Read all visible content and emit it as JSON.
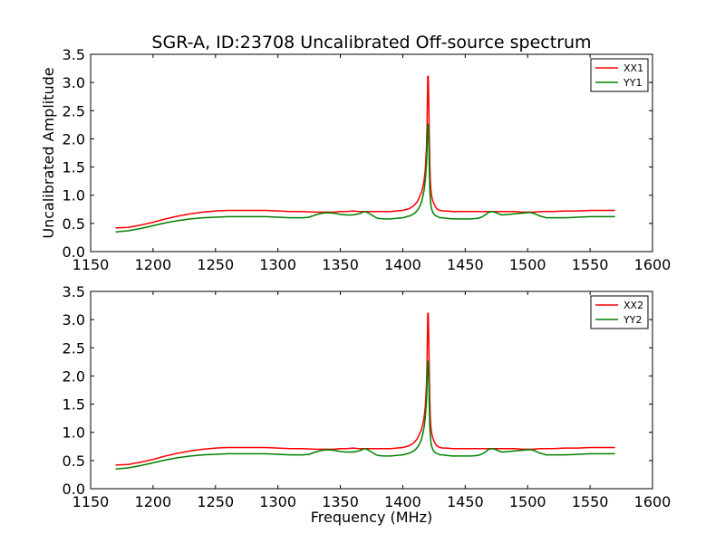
{
  "chart_data": {
    "type": "line",
    "title": "SGR-A, ID:23708 Uncalibrated Off-source spectrum",
    "xlabel": "Frequency (MHz)",
    "ylabel": "Uncalibrated Amplitude",
    "xlim": [
      1150,
      1600
    ],
    "ylim": [
      0,
      3.5
    ],
    "xticks": [
      "1150",
      "1200",
      "1250",
      "1300",
      "1350",
      "1400",
      "1450",
      "1500",
      "1550",
      "1600"
    ],
    "yticks": [
      "0.0",
      "0.5",
      "1.0",
      "1.5",
      "2.0",
      "2.5",
      "3.0",
      "3.5"
    ],
    "legend_position": "top-right",
    "grid": false,
    "panels": [
      {
        "series": [
          {
            "name": "XX1",
            "color": "#ff0000",
            "x": [
              1170,
              1180,
              1190,
              1200,
              1210,
              1220,
              1230,
              1240,
              1250,
              1260,
              1270,
              1280,
              1290,
              1300,
              1310,
              1320,
              1330,
              1335,
              1340,
              1345,
              1350,
              1355,
              1360,
              1365,
              1370,
              1375,
              1380,
              1385,
              1390,
              1395,
              1400,
              1405,
              1408,
              1410,
              1412,
              1414,
              1415,
              1416,
              1417,
              1418,
              1419,
              1419.5,
              1420,
              1420.4,
              1420.8,
              1421.2,
              1421.6,
              1422,
              1422.5,
              1423,
              1424,
              1425,
              1426,
              1427,
              1428,
              1430,
              1432,
              1435,
              1440,
              1445,
              1450,
              1455,
              1460,
              1465,
              1470,
              1475,
              1480,
              1485,
              1490,
              1495,
              1500,
              1505,
              1510,
              1515,
              1520,
              1530,
              1540,
              1550,
              1560,
              1570
            ],
            "y": [
              0.42,
              0.43,
              0.47,
              0.52,
              0.58,
              0.63,
              0.67,
              0.7,
              0.72,
              0.73,
              0.73,
              0.73,
              0.73,
              0.72,
              0.71,
              0.71,
              0.7,
              0.7,
              0.7,
              0.7,
              0.71,
              0.71,
              0.72,
              0.71,
              0.71,
              0.71,
              0.71,
              0.71,
              0.71,
              0.72,
              0.73,
              0.76,
              0.8,
              0.84,
              0.9,
              1.0,
              1.05,
              1.14,
              1.25,
              1.45,
              1.85,
              2.3,
              3.11,
              3.11,
              2.7,
              2.1,
              1.6,
              1.3,
              1.1,
              1.0,
              0.9,
              0.85,
              0.8,
              0.77,
              0.75,
              0.73,
              0.72,
              0.72,
              0.71,
              0.71,
              0.71,
              0.71,
              0.71,
              0.71,
              0.71,
              0.71,
              0.71,
              0.71,
              0.71,
              0.7,
              0.7,
              0.7,
              0.71,
              0.71,
              0.71,
              0.72,
              0.72,
              0.73,
              0.73,
              0.73
            ]
          },
          {
            "name": "YY1",
            "color": "#008000",
            "x": [
              1170,
              1180,
              1190,
              1200,
              1210,
              1220,
              1230,
              1240,
              1250,
              1260,
              1270,
              1280,
              1290,
              1300,
              1310,
              1320,
              1325,
              1330,
              1335,
              1340,
              1345,
              1350,
              1355,
              1360,
              1365,
              1368,
              1370,
              1372,
              1375,
              1378,
              1380,
              1385,
              1390,
              1395,
              1400,
              1405,
              1408,
              1410,
              1412,
              1414,
              1415,
              1416,
              1417,
              1418,
              1419,
              1419.5,
              1420,
              1420.4,
              1420.8,
              1421.2,
              1421.6,
              1422,
              1422.5,
              1423,
              1424,
              1425,
              1426,
              1427,
              1428,
              1430,
              1432,
              1435,
              1440,
              1445,
              1450,
              1455,
              1460,
              1463,
              1466,
              1469,
              1472,
              1475,
              1478,
              1480,
              1485,
              1490,
              1495,
              1500,
              1503,
              1506,
              1510,
              1515,
              1520,
              1530,
              1540,
              1550,
              1560,
              1570
            ],
            "y": [
              0.35,
              0.37,
              0.41,
              0.46,
              0.51,
              0.55,
              0.58,
              0.6,
              0.61,
              0.62,
              0.62,
              0.62,
              0.62,
              0.61,
              0.6,
              0.6,
              0.61,
              0.65,
              0.68,
              0.69,
              0.68,
              0.66,
              0.65,
              0.65,
              0.67,
              0.7,
              0.71,
              0.69,
              0.65,
              0.61,
              0.59,
              0.58,
              0.58,
              0.59,
              0.6,
              0.63,
              0.66,
              0.69,
              0.74,
              0.82,
              0.88,
              0.97,
              1.08,
              1.25,
              1.55,
              1.9,
              2.26,
              2.26,
              1.95,
              1.5,
              1.15,
              0.95,
              0.83,
              0.76,
              0.7,
              0.66,
              0.64,
              0.63,
              0.62,
              0.6,
              0.6,
              0.59,
              0.58,
              0.58,
              0.58,
              0.58,
              0.59,
              0.61,
              0.65,
              0.7,
              0.71,
              0.69,
              0.66,
              0.65,
              0.66,
              0.67,
              0.68,
              0.69,
              0.69,
              0.67,
              0.63,
              0.6,
              0.6,
              0.6,
              0.61,
              0.62,
              0.62,
              0.62
            ]
          }
        ]
      },
      {
        "series": [
          {
            "name": "XX2",
            "color": "#ff0000",
            "x": [
              1170,
              1180,
              1190,
              1200,
              1210,
              1220,
              1230,
              1240,
              1250,
              1260,
              1270,
              1280,
              1290,
              1300,
              1310,
              1320,
              1330,
              1335,
              1340,
              1345,
              1350,
              1355,
              1360,
              1365,
              1370,
              1375,
              1380,
              1385,
              1390,
              1395,
              1400,
              1405,
              1408,
              1410,
              1412,
              1414,
              1415,
              1416,
              1417,
              1418,
              1419,
              1419.5,
              1420,
              1420.4,
              1420.8,
              1421.2,
              1421.6,
              1422,
              1422.5,
              1423,
              1424,
              1425,
              1426,
              1427,
              1428,
              1430,
              1432,
              1435,
              1440,
              1445,
              1450,
              1455,
              1460,
              1465,
              1470,
              1475,
              1480,
              1485,
              1490,
              1495,
              1500,
              1505,
              1510,
              1515,
              1520,
              1530,
              1540,
              1550,
              1560,
              1570
            ],
            "y": [
              0.42,
              0.43,
              0.47,
              0.52,
              0.58,
              0.63,
              0.67,
              0.7,
              0.72,
              0.73,
              0.73,
              0.73,
              0.73,
              0.72,
              0.71,
              0.71,
              0.7,
              0.7,
              0.7,
              0.7,
              0.71,
              0.71,
              0.72,
              0.71,
              0.71,
              0.71,
              0.71,
              0.71,
              0.71,
              0.72,
              0.73,
              0.76,
              0.8,
              0.84,
              0.9,
              1.0,
              1.05,
              1.14,
              1.25,
              1.45,
              1.85,
              2.3,
              3.11,
              3.11,
              2.7,
              2.1,
              1.6,
              1.3,
              1.1,
              1.0,
              0.9,
              0.85,
              0.8,
              0.77,
              0.75,
              0.73,
              0.72,
              0.72,
              0.71,
              0.71,
              0.71,
              0.71,
              0.71,
              0.71,
              0.71,
              0.71,
              0.71,
              0.71,
              0.71,
              0.7,
              0.7,
              0.7,
              0.71,
              0.71,
              0.71,
              0.72,
              0.72,
              0.73,
              0.73,
              0.73
            ]
          },
          {
            "name": "YY2",
            "color": "#008000",
            "x": [
              1170,
              1180,
              1190,
              1200,
              1210,
              1220,
              1230,
              1240,
              1250,
              1260,
              1270,
              1280,
              1290,
              1300,
              1310,
              1320,
              1325,
              1330,
              1335,
              1340,
              1345,
              1350,
              1355,
              1360,
              1365,
              1368,
              1370,
              1372,
              1375,
              1378,
              1380,
              1385,
              1390,
              1395,
              1400,
              1405,
              1408,
              1410,
              1412,
              1414,
              1415,
              1416,
              1417,
              1418,
              1419,
              1419.5,
              1420,
              1420.4,
              1420.8,
              1421.2,
              1421.6,
              1422,
              1422.5,
              1423,
              1424,
              1425,
              1426,
              1427,
              1428,
              1430,
              1432,
              1435,
              1440,
              1445,
              1450,
              1455,
              1460,
              1463,
              1466,
              1469,
              1472,
              1475,
              1478,
              1480,
              1485,
              1490,
              1495,
              1500,
              1503,
              1506,
              1510,
              1515,
              1520,
              1530,
              1540,
              1550,
              1560,
              1570
            ],
            "y": [
              0.35,
              0.37,
              0.41,
              0.46,
              0.51,
              0.55,
              0.58,
              0.6,
              0.61,
              0.62,
              0.62,
              0.62,
              0.62,
              0.61,
              0.6,
              0.6,
              0.61,
              0.65,
              0.68,
              0.69,
              0.68,
              0.66,
              0.65,
              0.65,
              0.67,
              0.7,
              0.71,
              0.69,
              0.65,
              0.61,
              0.59,
              0.58,
              0.58,
              0.59,
              0.6,
              0.63,
              0.66,
              0.69,
              0.74,
              0.82,
              0.88,
              0.97,
              1.08,
              1.25,
              1.55,
              1.9,
              2.26,
              2.26,
              1.95,
              1.5,
              1.15,
              0.95,
              0.83,
              0.76,
              0.7,
              0.66,
              0.64,
              0.63,
              0.62,
              0.6,
              0.6,
              0.59,
              0.58,
              0.58,
              0.58,
              0.58,
              0.59,
              0.61,
              0.65,
              0.7,
              0.71,
              0.69,
              0.66,
              0.65,
              0.66,
              0.67,
              0.68,
              0.69,
              0.69,
              0.67,
              0.63,
              0.6,
              0.6,
              0.6,
              0.61,
              0.62,
              0.62,
              0.62
            ]
          }
        ]
      }
    ]
  }
}
